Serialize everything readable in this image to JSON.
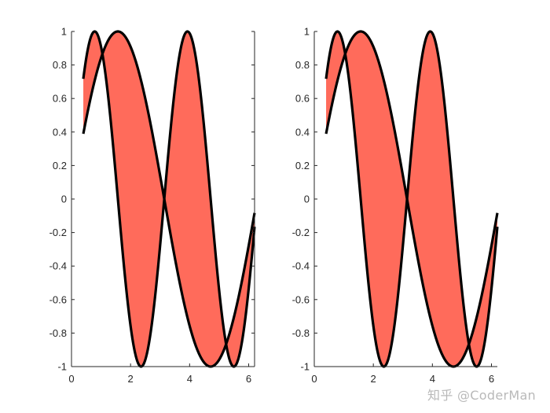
{
  "figure": {
    "watermark": "知乎 @CoderMan"
  },
  "chart_data": [
    {
      "type": "area",
      "title": "",
      "xlabel": "",
      "ylabel": "",
      "xlim": [
        0,
        6.2
      ],
      "ylim": [
        -1,
        1
      ],
      "xticks": [
        0,
        2,
        4,
        6
      ],
      "xtick_labels": [
        "0",
        "2",
        "4",
        "6"
      ],
      "yticks": [
        -1,
        -0.8,
        -0.6,
        -0.4,
        -0.2,
        0,
        0.2,
        0.4,
        0.6,
        0.8,
        1
      ],
      "ytick_labels": [
        "-1",
        "-0.8",
        "-0.6",
        "-0.4",
        "-0.2",
        "0",
        "0.2",
        "0.4",
        "0.6",
        "0.8",
        "1"
      ],
      "fill_color": "#FF6B5B",
      "line_color": "#000000",
      "box": "left-bottom-right",
      "series": [
        {
          "function": "sin(x)",
          "x_range": [
            0.4,
            6.2
          ]
        },
        {
          "function": "sin(2x)",
          "x_range": [
            0.4,
            6.2
          ]
        }
      ]
    },
    {
      "type": "area",
      "title": "",
      "xlabel": "",
      "ylabel": "",
      "xlim": [
        0,
        6.2
      ],
      "ylim": [
        -1,
        1
      ],
      "xticks": [
        0,
        2,
        4,
        6
      ],
      "xtick_labels": [
        "0",
        "2",
        "4",
        "6"
      ],
      "yticks": [
        -1,
        -0.8,
        -0.6,
        -0.4,
        -0.2,
        0,
        0.2,
        0.4,
        0.6,
        0.8,
        1
      ],
      "ytick_labels": [
        "-1",
        "-0.8",
        "-0.6",
        "-0.4",
        "-0.2",
        "0",
        "0.2",
        "0.4",
        "0.6",
        "0.8",
        "1"
      ],
      "fill_color": "#FF6B5B",
      "line_color": "#000000",
      "box": "left-bottom",
      "series": [
        {
          "function": "sin(x)",
          "x_range": [
            0.4,
            6.2
          ]
        },
        {
          "function": "sin(2x)",
          "x_range": [
            0.4,
            6.2
          ]
        }
      ]
    }
  ]
}
